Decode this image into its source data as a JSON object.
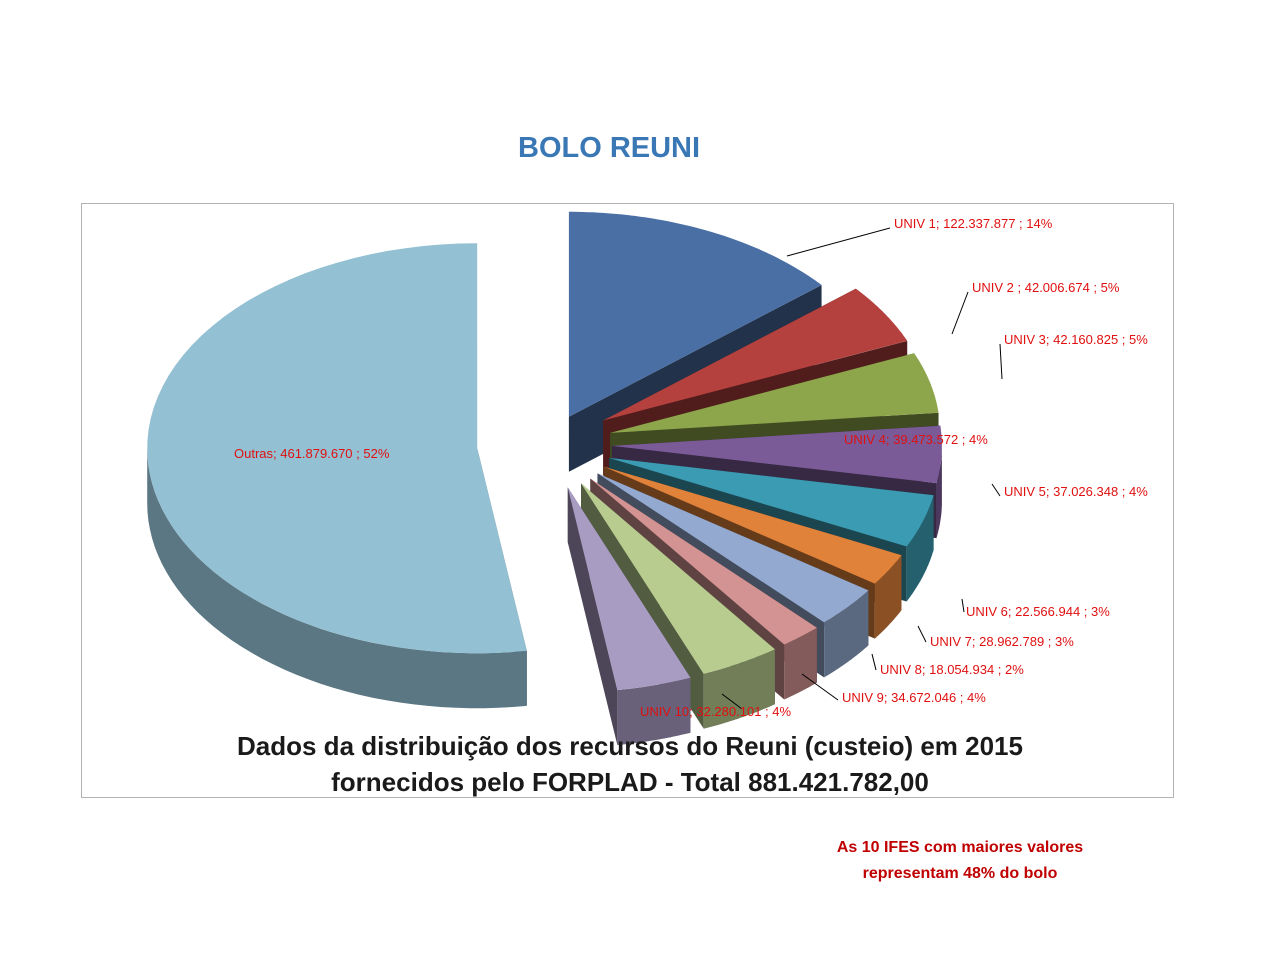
{
  "title": "BOLO REUNI",
  "caption_line1": "Dados da distribuição dos recursos do Reuni (custeio) em 2015",
  "caption_line2": "fornecidos pelo FORPLAD - Total 881.421.782,00",
  "note_line1": "As 10 IFES com maiores valores",
  "note_line2": "representam 48% do bolo",
  "chart_data": {
    "type": "pie",
    "exploded": true,
    "three_d": true,
    "total": 881421782,
    "slices": [
      {
        "name": "UNIV 1",
        "value": 122337877,
        "percent": 14,
        "label": "UNIV 1;  122.337.877 ; 14%",
        "color": "#4a6fa5"
      },
      {
        "name": "UNIV 2",
        "value": 42006674,
        "percent": 5,
        "label": "UNIV 2 ;  42.006.674 ; 5%",
        "color": "#b5413f"
      },
      {
        "name": "UNIV 3",
        "value": 42160825,
        "percent": 5,
        "label": "UNIV 3;  42.160.825 ; 5%",
        "color": "#8ea64b"
      },
      {
        "name": "UNIV 4",
        "value": 39473572,
        "percent": 4,
        "label": "UNIV 4;  39.473.572 ; 4%",
        "color": "#7a5b97"
      },
      {
        "name": "UNIV 5",
        "value": 37026348,
        "percent": 4,
        "label": "UNIV 5;  37.026.348 ; 4%",
        "color": "#3b9bb2"
      },
      {
        "name": "UNIV 6",
        "value": 22566944,
        "percent": 3,
        "label": "UNIV 6;  22.566.944 ; 3%",
        "color": "#e0823a"
      },
      {
        "name": "UNIV 7",
        "value": 28962789,
        "percent": 3,
        "label": "UNIV 7;  28.962.789 ; 3%",
        "color": "#93a9cf"
      },
      {
        "name": "UNIV 8",
        "value": 18054934,
        "percent": 2,
        "label": "UNIV 8;  18.054.934 ; 2%",
        "color": "#d39393"
      },
      {
        "name": "UNIV 9",
        "value": 34672046,
        "percent": 4,
        "label": "UNIV 9;  34.672.046 ; 4%",
        "color": "#b7cc8e"
      },
      {
        "name": "UNIV 10",
        "value": 32280101,
        "percent": 4,
        "label": "UNIV 10;  32.280.101 ; 4%",
        "color": "#a89cc3"
      },
      {
        "name": "Outras",
        "value": 461879670,
        "percent": 52,
        "label": "Outras;  461.879.670 ; 52%",
        "color": "#93c0d3"
      }
    ]
  }
}
